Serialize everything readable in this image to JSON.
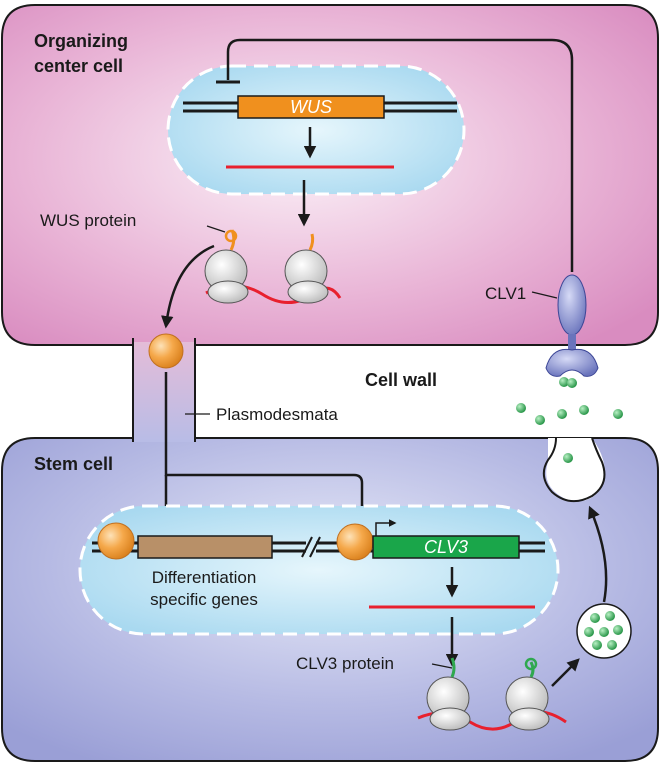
{
  "labels": {
    "organizing_center_line1": "Organizing",
    "organizing_center_line2": "center cell",
    "wus_gene": "WUS",
    "wus_protein": "WUS protein",
    "clv1": "CLV1",
    "cell_wall": "Cell wall",
    "plasmodesmata": "Plasmodesmata",
    "stem_cell": "Stem cell",
    "clv3_gene": "CLV3",
    "diff_genes_line1": "Differentiation",
    "diff_genes_line2": "specific genes",
    "clv3_protein": "CLV3 protein"
  },
  "colors": {
    "organizing_cell": "#d98cc0",
    "stem_cell": "#9a9fd6",
    "nucleus": "#bfe3f4",
    "wus_gene": "#f0901e",
    "clv3_gene": "#1aa64a",
    "diff_gene": "#b89068",
    "mrna": "#e8202e",
    "wus_protein": "#f5a84a",
    "clv3_peptide": "#2fa84f",
    "clv1_receptor": "#7a84c8"
  }
}
